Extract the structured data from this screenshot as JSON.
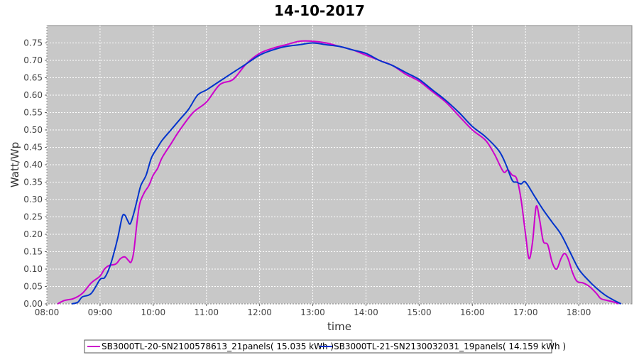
{
  "chart_data": {
    "type": "line",
    "title": "14-10-2017",
    "xlabel": "time",
    "ylabel": "Watt/Wp",
    "xlim": [
      "08:00",
      "19:00"
    ],
    "ylim": [
      0,
      0.8
    ],
    "x_ticks": [
      "08:00",
      "09:00",
      "10:00",
      "11:00",
      "12:00",
      "13:00",
      "14:00",
      "15:00",
      "16:00",
      "17:00",
      "18:00"
    ],
    "y_ticks": [
      "0.00",
      "0.05",
      "0.10",
      "0.15",
      "0.20",
      "0.25",
      "0.30",
      "0.35",
      "0.40",
      "0.45",
      "0.50",
      "0.55",
      "0.60",
      "0.65",
      "0.70",
      "0.75"
    ],
    "grid": true,
    "background_color": "#c8c8c8",
    "legend_position": "bottom",
    "series": [
      {
        "name": "SB3000TL-20-SN2100578613_21panels( 15.035 kWh )",
        "color": "#cc00cc",
        "points": [
          [
            "08:12",
            0.0
          ],
          [
            "08:20",
            0.01
          ],
          [
            "08:30",
            0.015
          ],
          [
            "08:40",
            0.03
          ],
          [
            "08:50",
            0.06
          ],
          [
            "09:00",
            0.08
          ],
          [
            "09:05",
            0.1
          ],
          [
            "09:10",
            0.11
          ],
          [
            "09:18",
            0.115
          ],
          [
            "09:23",
            0.13
          ],
          [
            "09:28",
            0.135
          ],
          [
            "09:32",
            0.125
          ],
          [
            "09:35",
            0.12
          ],
          [
            "09:38",
            0.15
          ],
          [
            "09:42",
            0.24
          ],
          [
            "09:45",
            0.29
          ],
          [
            "09:50",
            0.32
          ],
          [
            "09:55",
            0.34
          ],
          [
            "10:00",
            0.37
          ],
          [
            "10:05",
            0.39
          ],
          [
            "10:10",
            0.42
          ],
          [
            "10:20",
            0.46
          ],
          [
            "10:30",
            0.5
          ],
          [
            "10:45",
            0.55
          ],
          [
            "11:00",
            0.58
          ],
          [
            "11:15",
            0.63
          ],
          [
            "11:30",
            0.645
          ],
          [
            "11:45",
            0.69
          ],
          [
            "12:00",
            0.72
          ],
          [
            "12:15",
            0.735
          ],
          [
            "12:30",
            0.745
          ],
          [
            "12:45",
            0.755
          ],
          [
            "13:00",
            0.755
          ],
          [
            "13:15",
            0.75
          ],
          [
            "13:30",
            0.74
          ],
          [
            "13:45",
            0.73
          ],
          [
            "14:00",
            0.715
          ],
          [
            "14:15",
            0.7
          ],
          [
            "14:30",
            0.685
          ],
          [
            "14:45",
            0.66
          ],
          [
            "15:00",
            0.64
          ],
          [
            "15:15",
            0.61
          ],
          [
            "15:30",
            0.58
          ],
          [
            "15:45",
            0.54
          ],
          [
            "16:00",
            0.5
          ],
          [
            "16:15",
            0.47
          ],
          [
            "16:25",
            0.43
          ],
          [
            "16:35",
            0.38
          ],
          [
            "16:40",
            0.385
          ],
          [
            "16:45",
            0.37
          ],
          [
            "16:50",
            0.36
          ],
          [
            "16:55",
            0.3
          ],
          [
            "17:00",
            0.2
          ],
          [
            "17:04",
            0.13
          ],
          [
            "17:08",
            0.18
          ],
          [
            "17:12",
            0.28
          ],
          [
            "17:16",
            0.24
          ],
          [
            "17:20",
            0.18
          ],
          [
            "17:25",
            0.17
          ],
          [
            "17:30",
            0.12
          ],
          [
            "17:35",
            0.1
          ],
          [
            "17:40",
            0.13
          ],
          [
            "17:44",
            0.145
          ],
          [
            "17:48",
            0.13
          ],
          [
            "17:53",
            0.09
          ],
          [
            "17:58",
            0.065
          ],
          [
            "18:05",
            0.06
          ],
          [
            "18:12",
            0.05
          ],
          [
            "18:20",
            0.03
          ],
          [
            "18:25",
            0.015
          ],
          [
            "18:32",
            0.01
          ],
          [
            "18:40",
            0.005
          ],
          [
            "18:45",
            0.0
          ]
        ]
      },
      {
        "name": "SB3000TL-21-SN2130032031_19panels( 14.159 kWh )",
        "color": "#0033cc",
        "points": [
          [
            "08:28",
            0.0
          ],
          [
            "08:35",
            0.005
          ],
          [
            "08:40",
            0.02
          ],
          [
            "08:50",
            0.03
          ],
          [
            "09:00",
            0.07
          ],
          [
            "09:05",
            0.075
          ],
          [
            "09:10",
            0.1
          ],
          [
            "09:15",
            0.14
          ],
          [
            "09:20",
            0.19
          ],
          [
            "09:25",
            0.25
          ],
          [
            "09:28",
            0.255
          ],
          [
            "09:31",
            0.24
          ],
          [
            "09:34",
            0.23
          ],
          [
            "09:38",
            0.26
          ],
          [
            "09:42",
            0.3
          ],
          [
            "09:46",
            0.34
          ],
          [
            "09:52",
            0.37
          ],
          [
            "09:58",
            0.42
          ],
          [
            "10:05",
            0.45
          ],
          [
            "10:10",
            0.47
          ],
          [
            "10:20",
            0.5
          ],
          [
            "10:30",
            0.53
          ],
          [
            "10:40",
            0.56
          ],
          [
            "10:50",
            0.6
          ],
          [
            "11:00",
            0.615
          ],
          [
            "11:15",
            0.64
          ],
          [
            "11:30",
            0.665
          ],
          [
            "11:45",
            0.69
          ],
          [
            "12:00",
            0.715
          ],
          [
            "12:15",
            0.73
          ],
          [
            "12:30",
            0.74
          ],
          [
            "12:45",
            0.745
          ],
          [
            "13:00",
            0.75
          ],
          [
            "13:15",
            0.745
          ],
          [
            "13:30",
            0.74
          ],
          [
            "13:45",
            0.73
          ],
          [
            "14:00",
            0.72
          ],
          [
            "14:15",
            0.7
          ],
          [
            "14:30",
            0.685
          ],
          [
            "14:45",
            0.665
          ],
          [
            "15:00",
            0.645
          ],
          [
            "15:15",
            0.615
          ],
          [
            "15:30",
            0.585
          ],
          [
            "15:45",
            0.55
          ],
          [
            "16:00",
            0.51
          ],
          [
            "16:15",
            0.48
          ],
          [
            "16:30",
            0.44
          ],
          [
            "16:38",
            0.4
          ],
          [
            "16:45",
            0.355
          ],
          [
            "16:50",
            0.35
          ],
          [
            "16:55",
            0.345
          ],
          [
            "17:00",
            0.35
          ],
          [
            "17:10",
            0.31
          ],
          [
            "17:20",
            0.27
          ],
          [
            "17:30",
            0.235
          ],
          [
            "17:40",
            0.2
          ],
          [
            "17:50",
            0.15
          ],
          [
            "18:00",
            0.1
          ],
          [
            "18:10",
            0.07
          ],
          [
            "18:20",
            0.045
          ],
          [
            "18:30",
            0.025
          ],
          [
            "18:40",
            0.01
          ],
          [
            "18:48",
            0.0
          ]
        ]
      }
    ]
  }
}
